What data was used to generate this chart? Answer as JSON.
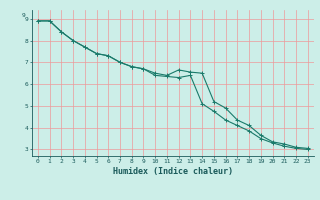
{
  "xlabel": "Humidex (Indice chaleur)",
  "bg_color": "#cceee8",
  "grid_color": "#ee9999",
  "line_color": "#1a7a6a",
  "line1_x": [
    0,
    1,
    2,
    3,
    4,
    5,
    6,
    7,
    8,
    9,
    10,
    11,
    12,
    13,
    14,
    15,
    16,
    17,
    18,
    19,
    20,
    21,
    22,
    23
  ],
  "line1_y": [
    8.9,
    8.9,
    8.4,
    8.0,
    7.7,
    7.4,
    7.3,
    7.0,
    6.8,
    6.7,
    6.5,
    6.4,
    6.65,
    6.55,
    6.5,
    5.2,
    4.9,
    4.35,
    4.1,
    3.65,
    3.35,
    3.25,
    3.1,
    3.05
  ],
  "line2_x": [
    0,
    1,
    2,
    3,
    4,
    5,
    6,
    7,
    8,
    9,
    10,
    11,
    12,
    13,
    14,
    15,
    16,
    17,
    18,
    19,
    20,
    21,
    22,
    23
  ],
  "line2_y": [
    8.9,
    8.9,
    8.4,
    8.0,
    7.7,
    7.4,
    7.3,
    7.0,
    6.8,
    6.7,
    6.4,
    6.35,
    6.3,
    6.4,
    5.1,
    4.75,
    4.35,
    4.1,
    3.85,
    3.5,
    3.3,
    3.15,
    3.05,
    3.0
  ],
  "xlim": [
    -0.5,
    23.5
  ],
  "ylim": [
    2.7,
    9.4
  ],
  "yticks": [
    3,
    4,
    5,
    6,
    7,
    8,
    9
  ],
  "xticks": [
    0,
    1,
    2,
    3,
    4,
    5,
    6,
    7,
    8,
    9,
    10,
    11,
    12,
    13,
    14,
    15,
    16,
    17,
    18,
    19,
    20,
    21,
    22,
    23
  ],
  "marker": "+",
  "markersize": 3,
  "linewidth": 0.8,
  "font_color": "#1a5a5a",
  "tick_fontsize": 4.5,
  "xlabel_fontsize": 6.0
}
